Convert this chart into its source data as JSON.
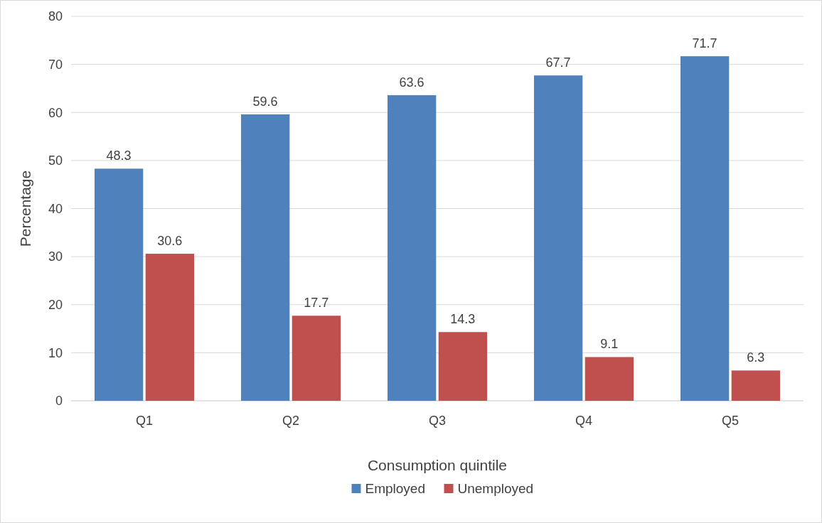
{
  "chart_data": {
    "type": "bar",
    "xlabel": "Consumption quintile",
    "ylabel": "Percentage",
    "categories": [
      "Q1",
      "Q2",
      "Q3",
      "Q4",
      "Q5"
    ],
    "series": [
      {
        "name": "Employed",
        "color": "#4f81bd",
        "values": [
          48.3,
          59.6,
          63.6,
          67.7,
          71.7
        ]
      },
      {
        "name": "Unemployed",
        "color": "#c0504d",
        "values": [
          30.6,
          17.7,
          14.3,
          9.1,
          6.3
        ]
      }
    ],
    "ylim": [
      0,
      80
    ],
    "yticks": [
      0,
      10,
      20,
      30,
      40,
      50,
      60,
      70,
      80
    ],
    "grid": "y",
    "legend": "bottom",
    "data_labels": true
  }
}
